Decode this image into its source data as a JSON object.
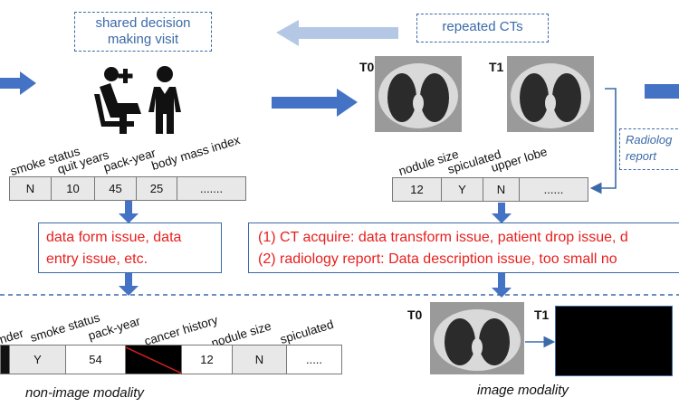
{
  "top": {
    "visit_label": "shared decision making visit",
    "cts_label": "repeated CTs",
    "t0": "T0",
    "t1": "T1",
    "radiology_label": "Radiolog report"
  },
  "nonimage_top": {
    "headers": [
      "smoke status",
      "quit years",
      "pack-year",
      "body mass index"
    ],
    "values": [
      "N",
      "10",
      "45",
      "25",
      "......."
    ],
    "issue_text": "data form issue, data entry issue, etc."
  },
  "image_top": {
    "headers": [
      "nodule size",
      "spiculated",
      "upper lobe"
    ],
    "values": [
      "12",
      "Y",
      "N",
      "......"
    ],
    "issue_line1": "(1) CT acquire: data transform issue, patient drop issue, d",
    "issue_line2": "(2) radiology report: Data description issue, too small no"
  },
  "bottom": {
    "headers": [
      "nder",
      "smoke status",
      "pack-year",
      "cancer history",
      "nodule size",
      "spiculated"
    ],
    "values": [
      "Y",
      "54",
      "",
      "12",
      "N",
      "....."
    ],
    "t0": "T0",
    "t1": "T1",
    "nonimage_caption": "non-image modality",
    "image_caption": "image modality"
  },
  "colors": {
    "accent": "#3b6aa8",
    "issue_text": "#e8201e",
    "arrow_light": "#b4c8e6"
  }
}
